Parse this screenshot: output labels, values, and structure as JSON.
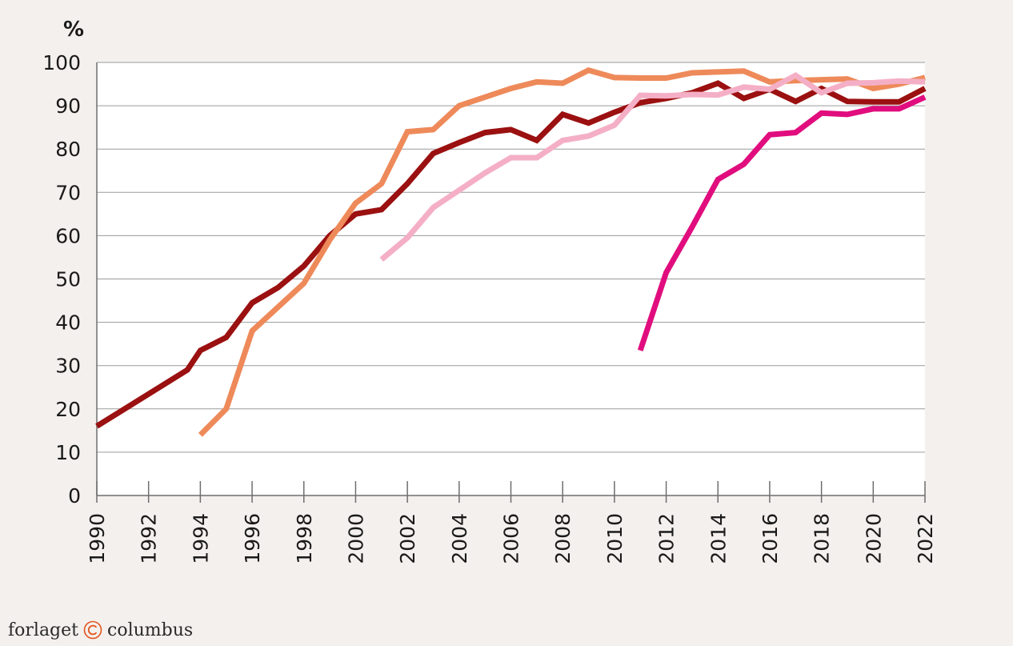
{
  "chart_data": {
    "type": "line",
    "unit": "%",
    "xlim": [
      1990,
      2022
    ],
    "ylim": [
      0,
      100
    ],
    "grid": true,
    "y_ticks": [
      "0",
      "10",
      "20",
      "30",
      "40",
      "50",
      "60",
      "70",
      "80",
      "90",
      "100"
    ],
    "x_ticks": [
      "1990",
      "1992",
      "1994",
      "1996",
      "1998",
      "2000",
      "2002",
      "2004",
      "2006",
      "2008",
      "2010",
      "2012",
      "2014",
      "2016",
      "2018",
      "2020",
      "2022"
    ],
    "series": [
      {
        "color": "#9b1010",
        "x": [
          1990,
          1993.5,
          1994,
          1995,
          1996,
          1997,
          1998,
          1999,
          2000,
          2001,
          2002,
          2003,
          2004,
          2005,
          2006,
          2007,
          2008,
          2009,
          2010,
          2011,
          2012,
          2013,
          2014,
          2015,
          2016,
          2017,
          2018,
          2019,
          2020,
          2021,
          2022
        ],
        "y": [
          16,
          29,
          33.5,
          36.5,
          44.5,
          48,
          53,
          60,
          65,
          66,
          72,
          79,
          81.5,
          83.8,
          84.5,
          82,
          88,
          86,
          88.5,
          90.7,
          91.7,
          93,
          95.2,
          91.7,
          93.8,
          91,
          94,
          91,
          90.9,
          90.9,
          94
        ]
      },
      {
        "color": "#ee8a5a",
        "x": [
          1994,
          1995,
          1996,
          1997,
          1998,
          1999,
          2000,
          2001,
          2002,
          2003,
          2004,
          2005,
          2006,
          2007,
          2008,
          2009,
          2010,
          2011,
          2012,
          2013,
          2014,
          2015,
          2016,
          2017,
          2018,
          2019,
          2020,
          2021,
          2022
        ],
        "y": [
          14,
          20,
          38,
          43.5,
          49,
          59,
          67.5,
          72,
          84,
          84.5,
          90,
          92,
          94,
          95.5,
          95.2,
          98.2,
          96.5,
          96.4,
          96.4,
          97.6,
          97.8,
          98,
          95.5,
          95.8,
          96,
          96.2,
          94,
          95,
          96.5
        ]
      },
      {
        "color": "#f4afc6",
        "x": [
          2001,
          2002,
          2003,
          2004,
          2005,
          2006,
          2007,
          2008,
          2009,
          2010,
          2011,
          2012,
          2013,
          2014,
          2015,
          2016,
          2017,
          2018,
          2019,
          2020,
          2021,
          2022
        ],
        "y": [
          54.5,
          59.5,
          66.5,
          70.5,
          74.5,
          78,
          78,
          82,
          83,
          85.5,
          92.4,
          92.3,
          92.6,
          92.5,
          94.3,
          93.8,
          97,
          93,
          95.2,
          95.3,
          95.7,
          95.5
        ]
      },
      {
        "color": "#e10d7e",
        "x": [
          2011,
          2012,
          2013,
          2014,
          2015,
          2016,
          2017,
          2018,
          2019,
          2020,
          2021,
          2022
        ],
        "y": [
          33.5,
          51.5,
          62,
          73,
          76.5,
          83.3,
          83.8,
          88.3,
          88,
          89.3,
          89.3,
          92
        ]
      }
    ]
  },
  "footer": {
    "publisher_left": "forlaget",
    "publisher_right": "columbus",
    "logo_color": "#e2541e"
  }
}
